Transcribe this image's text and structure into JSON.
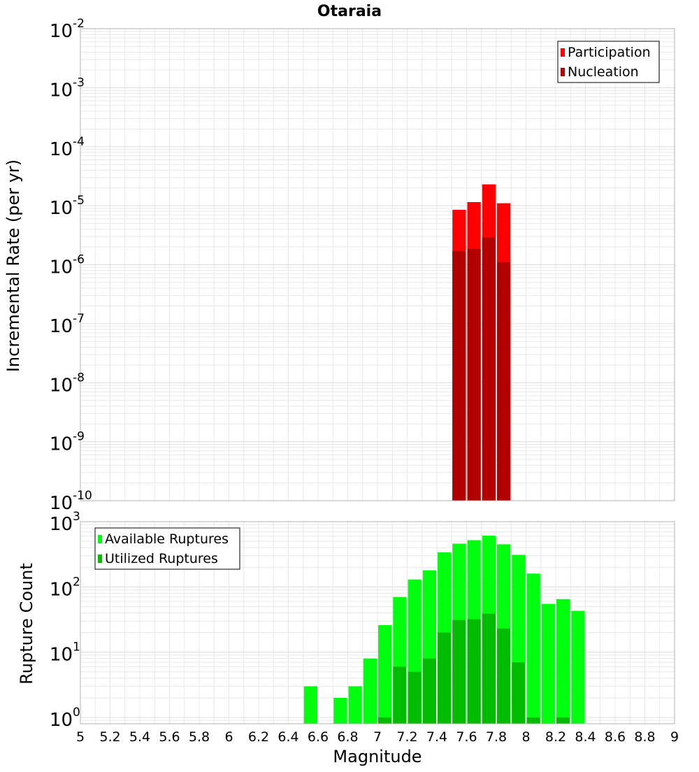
{
  "title": "Otaraia",
  "xlabel": "Magnitude",
  "x_ticks": [
    "5",
    "5.2",
    "5.4",
    "5.6",
    "5.8",
    "6",
    "6.2",
    "6.4",
    "6.6",
    "6.8",
    "7",
    "7.2",
    "7.4",
    "7.6",
    "7.8",
    "8",
    "8.2",
    "8.4",
    "8.6",
    "8.8",
    "9"
  ],
  "colors": {
    "participation": "#ff0000",
    "nucleation": "#b20000",
    "available": "#00ff0f",
    "utilized": "#00bb00",
    "grid": "#e8e8e8",
    "frame": "#b0b0b0"
  },
  "chart_data": [
    {
      "type": "bar",
      "ylabel": "Incremental Rate (per yr)",
      "log_y": true,
      "ylim": [
        1e-10,
        0.01
      ],
      "xlim": [
        5,
        9
      ],
      "bin_width": 0.1,
      "y_ticks": [
        {
          "base": "10",
          "exp": "-2"
        },
        {
          "base": "10",
          "exp": "-3"
        },
        {
          "base": "10",
          "exp": "-4"
        },
        {
          "base": "10",
          "exp": "-5"
        },
        {
          "base": "10",
          "exp": "-6"
        },
        {
          "base": "10",
          "exp": "-7"
        },
        {
          "base": "10",
          "exp": "-8"
        },
        {
          "base": "10",
          "exp": "-9"
        },
        {
          "base": "10",
          "exp": "-10"
        }
      ],
      "legend_position": "top-right",
      "series": [
        {
          "name": "Participation",
          "x": [
            7.55,
            7.65,
            7.75,
            7.85
          ],
          "values": [
            8.5e-06,
            1.15e-05,
            2.3e-05,
            1.1e-05
          ]
        },
        {
          "name": "Nucleation",
          "x": [
            7.55,
            7.65,
            7.75,
            7.85
          ],
          "values": [
            1.7e-06,
            1.85e-06,
            2.9e-06,
            1.1e-06
          ]
        }
      ]
    },
    {
      "type": "bar",
      "ylabel": "Rupture Count",
      "log_y": true,
      "ylim": [
        0.8,
        1000
      ],
      "xlim": [
        5,
        9
      ],
      "bin_width": 0.1,
      "y_ticks": [
        {
          "base": "10",
          "exp": "3"
        },
        {
          "base": "10",
          "exp": "2"
        },
        {
          "base": "10",
          "exp": "1"
        },
        {
          "base": "10",
          "exp": "0"
        }
      ],
      "legend_position": "top-left",
      "series": [
        {
          "name": "Available Ruptures",
          "x": [
            6.55,
            6.75,
            6.85,
            6.95,
            7.05,
            7.15,
            7.25,
            7.35,
            7.45,
            7.55,
            7.65,
            7.75,
            7.85,
            7.95,
            8.05,
            8.15,
            8.25,
            8.35
          ],
          "values": [
            3,
            2,
            3,
            8,
            26,
            70,
            130,
            180,
            340,
            460,
            520,
            610,
            450,
            310,
            160,
            55,
            65,
            43
          ]
        },
        {
          "name": "Utilized Ruptures",
          "x": [
            7.05,
            7.15,
            7.25,
            7.35,
            7.45,
            7.55,
            7.65,
            7.75,
            7.85,
            7.95,
            8.05,
            8.25
          ],
          "values": [
            1,
            6,
            5,
            8,
            20,
            31,
            32,
            39,
            23,
            7,
            1,
            1
          ]
        }
      ]
    }
  ]
}
